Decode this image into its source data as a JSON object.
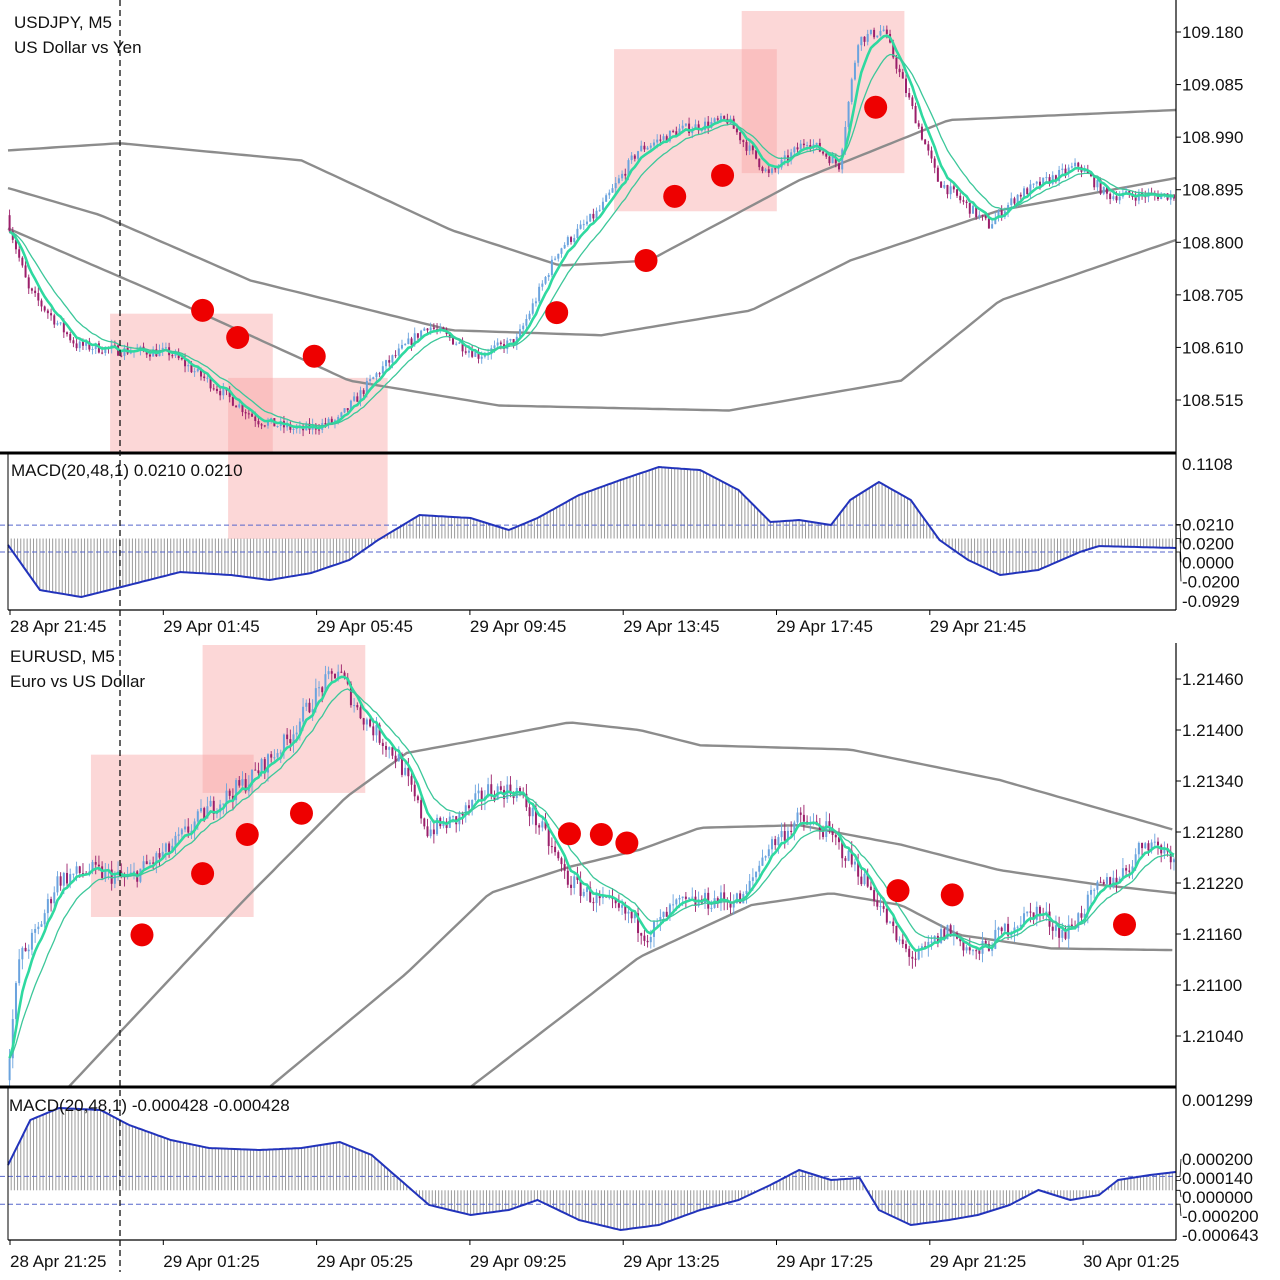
{
  "colors": {
    "up_candle": "#6aa3de",
    "down_candle": "#9b1f6a",
    "ema_fast": "#2fd9a0",
    "ema_slow": "#3cc79a",
    "band": "#8c8c8c",
    "macd_line": "#2233bb",
    "histogram": "#9a9a9a",
    "level": "#5566cc",
    "box": "#f8a0a0",
    "signal_dot": "#ee0000"
  },
  "chart_data": [
    {
      "type": "candlestick",
      "symbol": "USDJPY, M5",
      "description": "US Dollar vs Yen",
      "bar_minutes": 5,
      "bars": 366,
      "y_ticks": [
        "109.180",
        "109.085",
        "108.990",
        "108.895",
        "108.800",
        "108.705",
        "108.610",
        "108.515"
      ],
      "y_tick_values": [
        109.18,
        109.085,
        108.99,
        108.895,
        108.8,
        108.705,
        108.61,
        108.515
      ],
      "x_ticks": [
        "28 Apr 21:45",
        "29 Apr 01:45",
        "29 Apr 05:45",
        "29 Apr 09:45",
        "29 Apr 13:45",
        "29 Apr 17:45",
        "29 Apr 21:45"
      ],
      "close_path": [
        [
          0,
          108.849
        ],
        [
          7,
          108.713
        ],
        [
          22,
          108.614
        ],
        [
          35,
          108.605
        ],
        [
          51,
          108.601
        ],
        [
          63,
          108.55
        ],
        [
          79,
          108.478
        ],
        [
          92,
          108.46
        ],
        [
          104,
          108.478
        ],
        [
          117,
          108.568
        ],
        [
          132,
          108.65
        ],
        [
          148,
          108.596
        ],
        [
          160,
          108.623
        ],
        [
          173,
          108.786
        ],
        [
          186,
          108.858
        ],
        [
          198,
          108.966
        ],
        [
          211,
          109.003
        ],
        [
          226,
          109.021
        ],
        [
          239,
          108.921
        ],
        [
          251,
          108.985
        ],
        [
          261,
          108.939
        ],
        [
          267,
          109.166
        ],
        [
          275,
          109.184
        ],
        [
          283,
          109.057
        ],
        [
          292,
          108.912
        ],
        [
          308,
          108.831
        ],
        [
          317,
          108.885
        ],
        [
          336,
          108.939
        ],
        [
          345,
          108.885
        ],
        [
          366,
          108.885
        ]
      ],
      "bands": {
        "upper": [
          [
            0,
            108.966
          ],
          [
            35,
            108.979
          ],
          [
            92,
            108.948
          ],
          [
            139,
            108.822
          ],
          [
            173,
            108.758
          ],
          [
            201,
            108.767
          ],
          [
            248,
            108.912
          ],
          [
            295,
            109.021
          ],
          [
            366,
            109.039
          ]
        ],
        "middle": [
          [
            0,
            108.898
          ],
          [
            29,
            108.849
          ],
          [
            76,
            108.731
          ],
          [
            139,
            108.641
          ],
          [
            186,
            108.632
          ],
          [
            233,
            108.677
          ],
          [
            264,
            108.767
          ],
          [
            311,
            108.858
          ],
          [
            366,
            108.916
          ]
        ],
        "lower": [
          [
            0,
            108.825
          ],
          [
            45,
            108.713
          ],
          [
            107,
            108.55
          ],
          [
            154,
            108.505
          ],
          [
            226,
            108.496
          ],
          [
            280,
            108.55
          ],
          [
            311,
            108.695
          ],
          [
            366,
            108.804
          ]
        ]
      },
      "boxes": [
        [
          32,
          83,
          108.671,
          108.418
        ],
        [
          69,
          119,
          108.555,
          108.264
        ],
        [
          190,
          241,
          109.149,
          108.856
        ],
        [
          230,
          281,
          109.218,
          108.925
        ]
      ],
      "signals": [
        [
          61,
          108.677
        ],
        [
          72,
          108.628
        ],
        [
          96,
          108.594
        ],
        [
          172,
          108.673
        ],
        [
          200,
          108.767
        ],
        [
          209,
          108.883
        ],
        [
          224,
          108.921
        ],
        [
          272,
          109.044
        ]
      ],
      "macd": {
        "label": "MACD(20,48,1) 0.0210 0.0210",
        "y_top": "0.1108",
        "y_bottom": "-0.0929",
        "levels": [
          "0.0200",
          "0.0210",
          "0.0000",
          "-0.0200"
        ],
        "level_values": [
          0.02,
          0.021,
          0.0,
          -0.02
        ],
        "range": [
          -0.0929,
          0.1108
        ],
        "path": [
          [
            0,
            -0.0097
          ],
          [
            10,
            -0.0766
          ],
          [
            23,
            -0.087
          ],
          [
            38,
            -0.0691
          ],
          [
            54,
            -0.0498
          ],
          [
            70,
            -0.0543
          ],
          [
            82,
            -0.0617
          ],
          [
            95,
            -0.0513
          ],
          [
            107,
            -0.032
          ],
          [
            116,
            -0.0022
          ],
          [
            129,
            0.0349
          ],
          [
            145,
            0.0305
          ],
          [
            157,
            0.0126
          ],
          [
            166,
            0.0305
          ],
          [
            179,
            0.0647
          ],
          [
            192,
            0.087
          ],
          [
            204,
            0.1063
          ],
          [
            217,
            0.1018
          ],
          [
            229,
            0.0721
          ],
          [
            239,
            0.0245
          ],
          [
            248,
            0.0275
          ],
          [
            258,
            0.0201
          ],
          [
            264,
            0.0572
          ],
          [
            273,
            0.084
          ],
          [
            283,
            0.0572
          ],
          [
            292,
            -0.0022
          ],
          [
            301,
            -0.032
          ],
          [
            311,
            -0.0543
          ],
          [
            323,
            -0.0468
          ],
          [
            336,
            -0.0201
          ],
          [
            342,
            -0.0112
          ],
          [
            366,
            -0.0141
          ]
        ]
      }
    },
    {
      "type": "candlestick",
      "symbol": "EURUSD, M5",
      "description": "Euro vs US Dollar",
      "bar_minutes": 5,
      "bars": 366,
      "y_ticks": [
        "1.21460",
        "1.21400",
        "1.21340",
        "1.21280",
        "1.21220",
        "1.21160",
        "1.21100",
        "1.21040"
      ],
      "y_tick_values": [
        1.2146,
        1.214,
        1.2134,
        1.2128,
        1.2122,
        1.2116,
        1.211,
        1.2104
      ],
      "x_ticks": [
        "28 Apr 21:25",
        "29 Apr 01:25",
        "29 Apr 05:25",
        "29 Apr 09:25",
        "29 Apr 13:25",
        "29 Apr 17:25",
        "29 Apr 21:25",
        "30 Apr 01:25"
      ],
      "close_path": [
        [
          0,
          1.20988
        ],
        [
          4,
          1.2113
        ],
        [
          10,
          1.21165
        ],
        [
          16,
          1.21224
        ],
        [
          26,
          1.21235
        ],
        [
          38,
          1.21224
        ],
        [
          51,
          1.21259
        ],
        [
          63,
          1.21306
        ],
        [
          76,
          1.21341
        ],
        [
          88,
          1.21388
        ],
        [
          98,
          1.21447
        ],
        [
          104,
          1.21471
        ],
        [
          110,
          1.21424
        ],
        [
          123,
          1.21365
        ],
        [
          132,
          1.21282
        ],
        [
          141,
          1.21294
        ],
        [
          151,
          1.21329
        ],
        [
          160,
          1.21329
        ],
        [
          168,
          1.21282
        ],
        [
          176,
          1.21224
        ],
        [
          185,
          1.212
        ],
        [
          195,
          1.21182
        ],
        [
          201,
          1.21159
        ],
        [
          210,
          1.21194
        ],
        [
          223,
          1.212
        ],
        [
          231,
          1.212
        ],
        [
          238,
          1.21259
        ],
        [
          248,
          1.21294
        ],
        [
          257,
          1.21282
        ],
        [
          267,
          1.21235
        ],
        [
          273,
          1.212
        ],
        [
          279,
          1.21153
        ],
        [
          285,
          1.2113
        ],
        [
          295,
          1.21165
        ],
        [
          304,
          1.21135
        ],
        [
          313,
          1.21165
        ],
        [
          323,
          1.21188
        ],
        [
          332,
          1.21159
        ],
        [
          342,
          1.21212
        ],
        [
          351,
          1.21235
        ],
        [
          357,
          1.21271
        ],
        [
          366,
          1.21253
        ]
      ],
      "bands": {
        "upper": [
          [
            19,
            1.2098
          ],
          [
            74,
            1.212
          ],
          [
            106,
            1.21321
          ],
          [
            125,
            1.21373
          ],
          [
            151,
            1.21391
          ],
          [
            176,
            1.21409
          ],
          [
            198,
            1.214
          ],
          [
            217,
            1.21382
          ],
          [
            264,
            1.21377
          ],
          [
            311,
            1.21341
          ],
          [
            366,
            1.21282
          ]
        ],
        "middle": [
          [
            82,
            1.2098
          ],
          [
            125,
            1.21114
          ],
          [
            151,
            1.21208
          ],
          [
            176,
            1.21239
          ],
          [
            198,
            1.21259
          ],
          [
            217,
            1.21285
          ],
          [
            248,
            1.21288
          ],
          [
            280,
            1.21265
          ],
          [
            311,
            1.21235
          ],
          [
            342,
            1.21218
          ],
          [
            366,
            1.21208
          ]
        ],
        "lower": [
          [
            145,
            1.2098
          ],
          [
            198,
            1.21133
          ],
          [
            233,
            1.21194
          ],
          [
            258,
            1.21208
          ],
          [
            280,
            1.21194
          ],
          [
            298,
            1.21159
          ],
          [
            327,
            1.21143
          ],
          [
            366,
            1.21141
          ]
        ]
      },
      "boxes": [
        [
          26,
          77,
          1.21371,
          1.2118
        ],
        [
          61,
          112,
          1.215,
          1.21326
        ]
      ],
      "signals": [
        [
          42,
          1.21159
        ],
        [
          61,
          1.21231
        ],
        [
          75,
          1.21277
        ],
        [
          92,
          1.21302
        ],
        [
          176,
          1.21278
        ],
        [
          186,
          1.21277
        ],
        [
          194,
          1.21267
        ],
        [
          279,
          1.21211
        ],
        [
          296,
          1.21206
        ],
        [
          350,
          1.21171
        ]
      ],
      "macd": {
        "label": "MACD(20,48,1) -0.000428 -0.000428",
        "y_top": "0.001299",
        "y_bottom": "-0.000643",
        "levels": [
          "0.000200",
          "0.000140",
          "0.000000",
          "-0.000200"
        ],
        "level_values": [
          0.0002,
          0.00014,
          0.0,
          -0.0002
        ],
        "range": [
          -0.000643,
          0.001299
        ],
        "path": [
          [
            0,
            0.000364
          ],
          [
            7,
            0.001011
          ],
          [
            16,
            0.001184
          ],
          [
            29,
            0.001155
          ],
          [
            38,
            0.000939
          ],
          [
            51,
            0.000724
          ],
          [
            63,
            0.000608
          ],
          [
            79,
            0.00058
          ],
          [
            92,
            0.000608
          ],
          [
            104,
            0.000695
          ],
          [
            114,
            0.000508
          ],
          [
            123,
            0.000148
          ],
          [
            132,
            -0.000211
          ],
          [
            145,
            -0.000355
          ],
          [
            157,
            -0.000283
          ],
          [
            166,
            -0.00014
          ],
          [
            179,
            -0.000427
          ],
          [
            192,
            -0.000571
          ],
          [
            204,
            -0.000499
          ],
          [
            217,
            -0.000283
          ],
          [
            229,
            -0.00014
          ],
          [
            239,
            7.6e-05
          ],
          [
            248,
            0.000292
          ],
          [
            258,
            0.000148
          ],
          [
            267,
            0.000177
          ],
          [
            273,
            -0.000283
          ],
          [
            283,
            -0.000499
          ],
          [
            295,
            -0.000427
          ],
          [
            304,
            -0.000355
          ],
          [
            314,
            -0.000211
          ],
          [
            323,
            4e-06
          ],
          [
            333,
            -0.00014
          ],
          [
            342,
            -6.8e-05
          ],
          [
            348,
            0.000148
          ],
          [
            358,
            0.00022
          ],
          [
            366,
            0.000263
          ]
        ]
      }
    }
  ]
}
